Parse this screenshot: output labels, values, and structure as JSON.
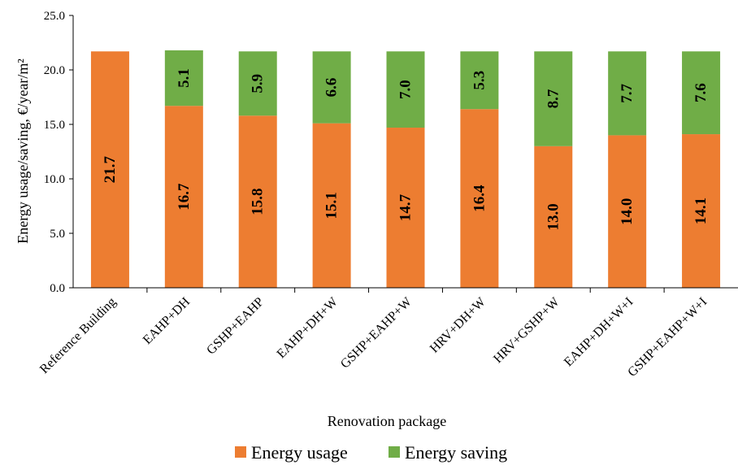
{
  "chart_data": {
    "type": "bar",
    "stacked": true,
    "categories": [
      "Reference Building",
      "EAHP+DH",
      "GSHP+EAHP",
      "EAHP+DH+W",
      "GSHP+EAHP+W",
      "HRV+DH+W",
      "HRV+GSHP+W",
      "EAHP+DH+W+I",
      "GSHP+EAHP+W+I"
    ],
    "series": [
      {
        "name": "Energy usage",
        "color": "#ED7D31",
        "values": [
          21.7,
          16.7,
          15.8,
          15.1,
          14.7,
          16.4,
          13.0,
          14.0,
          14.1
        ],
        "labels": [
          "21.7",
          "16.7",
          "15.8",
          "15.1",
          "14.7",
          "16.4",
          "13.0",
          "14.0",
          "14.1"
        ]
      },
      {
        "name": "Energy saving",
        "color": "#70AD47",
        "values": [
          null,
          5.1,
          5.9,
          6.6,
          7.0,
          5.3,
          8.7,
          7.7,
          7.6
        ],
        "labels": [
          "",
          "5.1",
          "5.9",
          "6.6",
          "7.0",
          "5.3",
          "8.7",
          "7.7",
          "7.6"
        ]
      }
    ],
    "xlabel": "Renovation package",
    "ylabel": "Energy usage/saving, €/year/m²",
    "ylim": [
      0,
      25
    ],
    "yticks": [
      "0.0",
      "5.0",
      "10.0",
      "15.0",
      "20.0",
      "25.0"
    ],
    "grid": false,
    "legend_position": "bottom"
  }
}
